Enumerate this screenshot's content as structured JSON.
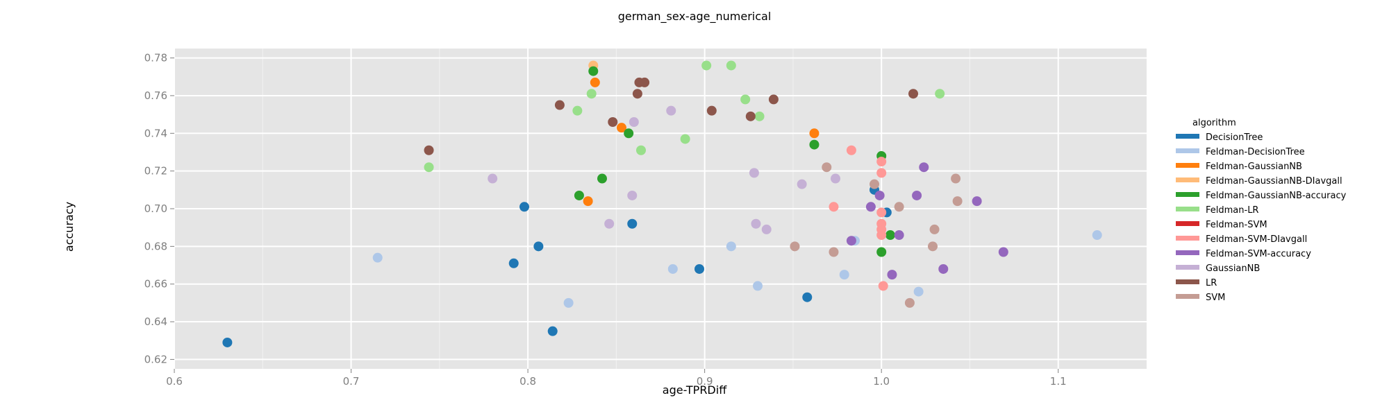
{
  "chart_data": {
    "type": "scatter",
    "title": "german_sex-age_numerical",
    "xlabel": "age-TPRDiff",
    "ylabel": "accuracy",
    "xlim": [
      0.6,
      1.15
    ],
    "ylim": [
      0.615,
      0.785
    ],
    "x_ticks": [
      "0.6",
      "0.7",
      "0.8",
      "0.9",
      "1.0",
      "1.1"
    ],
    "y_ticks": [
      "0.62",
      "0.64",
      "0.66",
      "0.68",
      "0.70",
      "0.72",
      "0.74",
      "0.76",
      "0.78"
    ],
    "grid": true,
    "legend_title": "algorithm",
    "legend_position": "right",
    "series": [
      {
        "name": "DecisionTree",
        "color": "#1f77b4",
        "points": [
          [
            0.63,
            0.629
          ],
          [
            0.792,
            0.671
          ],
          [
            0.798,
            0.701
          ],
          [
            0.806,
            0.68
          ],
          [
            0.814,
            0.635
          ],
          [
            0.859,
            0.692
          ],
          [
            0.897,
            0.668
          ],
          [
            0.958,
            0.653
          ],
          [
            0.996,
            0.71
          ],
          [
            1.003,
            0.698
          ]
        ]
      },
      {
        "name": "Feldman-DecisionTree",
        "color": "#aec7e8",
        "points": [
          [
            0.715,
            0.674
          ],
          [
            0.823,
            0.65
          ],
          [
            0.882,
            0.668
          ],
          [
            0.915,
            0.68
          ],
          [
            0.93,
            0.659
          ],
          [
            0.979,
            0.665
          ],
          [
            0.985,
            0.683
          ],
          [
            1.021,
            0.656
          ],
          [
            1.122,
            0.686
          ]
        ]
      },
      {
        "name": "Feldman-GaussianNB",
        "color": "#ff7f0e",
        "points": [
          [
            0.834,
            0.704
          ],
          [
            0.838,
            0.767
          ],
          [
            0.853,
            0.743
          ],
          [
            0.962,
            0.74
          ]
        ]
      },
      {
        "name": "Feldman-GaussianNB-DIavgall",
        "color": "#ffbb78",
        "points": [
          [
            0.837,
            0.776
          ]
        ]
      },
      {
        "name": "Feldman-GaussianNB-accuracy",
        "color": "#2ca02c",
        "points": [
          [
            0.829,
            0.707
          ],
          [
            0.837,
            0.773
          ],
          [
            0.842,
            0.716
          ],
          [
            0.857,
            0.74
          ],
          [
            0.962,
            0.734
          ],
          [
            1.0,
            0.728
          ],
          [
            1.0,
            0.677
          ],
          [
            1.005,
            0.686
          ]
        ]
      },
      {
        "name": "Feldman-LR",
        "color": "#98df8a",
        "points": [
          [
            0.744,
            0.722
          ],
          [
            0.828,
            0.752
          ],
          [
            0.836,
            0.761
          ],
          [
            0.864,
            0.731
          ],
          [
            0.889,
            0.737
          ],
          [
            0.901,
            0.776
          ],
          [
            0.915,
            0.776
          ],
          [
            0.923,
            0.758
          ],
          [
            0.931,
            0.749
          ],
          [
            1.033,
            0.761
          ]
        ]
      },
      {
        "name": "Feldman-SVM",
        "color": "#d62728",
        "points": []
      },
      {
        "name": "Feldman-SVM-DIavgall",
        "color": "#ff9896",
        "points": [
          [
            0.973,
            0.701
          ],
          [
            0.983,
            0.731
          ],
          [
            1.0,
            0.725
          ],
          [
            1.0,
            0.719
          ],
          [
            1.0,
            0.698
          ],
          [
            1.0,
            0.692
          ],
          [
            1.0,
            0.689
          ],
          [
            1.0,
            0.686
          ],
          [
            1.001,
            0.659
          ]
        ]
      },
      {
        "name": "Feldman-SVM-accuracy",
        "color": "#9467bd",
        "points": [
          [
            0.983,
            0.683
          ],
          [
            0.994,
            0.701
          ],
          [
            0.999,
            0.707
          ],
          [
            1.006,
            0.665
          ],
          [
            1.01,
            0.686
          ],
          [
            1.02,
            0.707
          ],
          [
            1.024,
            0.722
          ],
          [
            1.035,
            0.668
          ],
          [
            1.054,
            0.704
          ],
          [
            1.069,
            0.677
          ]
        ]
      },
      {
        "name": "GaussianNB",
        "color": "#c5b0d5",
        "points": [
          [
            0.78,
            0.716
          ],
          [
            0.846,
            0.692
          ],
          [
            0.859,
            0.707
          ],
          [
            0.86,
            0.746
          ],
          [
            0.881,
            0.752
          ],
          [
            0.928,
            0.719
          ],
          [
            0.929,
            0.692
          ],
          [
            0.935,
            0.689
          ],
          [
            0.955,
            0.713
          ],
          [
            0.974,
            0.716
          ]
        ]
      },
      {
        "name": "LR",
        "color": "#8c564b",
        "points": [
          [
            0.744,
            0.731
          ],
          [
            0.818,
            0.755
          ],
          [
            0.848,
            0.746
          ],
          [
            0.862,
            0.761
          ],
          [
            0.863,
            0.767
          ],
          [
            0.866,
            0.767
          ],
          [
            0.904,
            0.752
          ],
          [
            0.926,
            0.749
          ],
          [
            0.939,
            0.758
          ],
          [
            1.018,
            0.761
          ]
        ]
      },
      {
        "name": "SVM",
        "color": "#c49c94",
        "points": [
          [
            0.951,
            0.68
          ],
          [
            0.969,
            0.722
          ],
          [
            0.973,
            0.677
          ],
          [
            0.996,
            0.713
          ],
          [
            1.01,
            0.701
          ],
          [
            1.016,
            0.65
          ],
          [
            1.029,
            0.68
          ],
          [
            1.03,
            0.689
          ],
          [
            1.042,
            0.716
          ],
          [
            1.043,
            0.704
          ]
        ]
      }
    ]
  }
}
